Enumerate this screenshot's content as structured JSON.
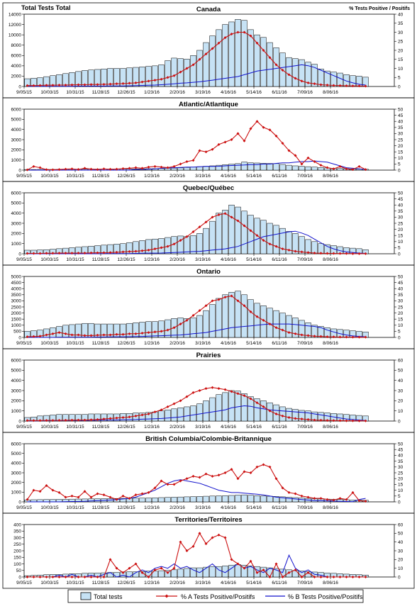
{
  "header": {
    "left_axis_title": "Total Tests Total",
    "right_axis_title": "% Tests Positive / Positifs"
  },
  "x_tick_labels": [
    "9/05/15",
    "10/03/15",
    "10/31/15",
    "11/28/15",
    "12/26/15",
    "1/23/16",
    "2/20/16",
    "3/19/16",
    "4/16/16",
    "5/14/16",
    "6/11/16",
    "7/09/16",
    "8/06/16"
  ],
  "legend": {
    "total_tests": "Total tests",
    "pct_a": "% A Tests Positive/Positifs",
    "pct_b": "% B Tests Positive/Positifs"
  },
  "colors": {
    "bar_fill": "#c6e2f5",
    "bar_stroke": "#000000",
    "line_a": "#cc1111",
    "line_b": "#1111cc",
    "frame": "#000000"
  },
  "chart_data": [
    {
      "type": "bar",
      "title": "Canada",
      "ylim_left": [
        0,
        14000
      ],
      "left_ticks": [
        0,
        2000,
        4000,
        6000,
        8000,
        10000,
        12000,
        14000
      ],
      "ylim_right": [
        0,
        40
      ],
      "right_ticks": [
        0,
        5,
        10,
        15,
        20,
        25,
        30,
        35,
        40
      ],
      "total_tests": [
        1500,
        1600,
        1700,
        1900,
        2100,
        2300,
        2500,
        2700,
        2900,
        3100,
        3200,
        3300,
        3400,
        3500,
        3500,
        3500,
        3600,
        3700,
        3800,
        3900,
        4000,
        4200,
        5000,
        5500,
        5400,
        5300,
        6000,
        7000,
        8500,
        9800,
        11000,
        12000,
        12500,
        13000,
        12800,
        11000,
        10000,
        9500,
        8500,
        7500,
        6500,
        5600,
        5400,
        5200,
        4700,
        4300,
        3400,
        3000,
        2800,
        2600,
        2300,
        2100,
        2000,
        1800
      ],
      "pct_a": [
        0.5,
        0.5,
        0.6,
        0.7,
        0.7,
        0.8,
        0.8,
        0.9,
        1,
        1,
        1.1,
        1.1,
        1.2,
        1.3,
        1.5,
        1.6,
        1.8,
        2,
        2.5,
        3,
        3.5,
        4,
        5,
        6,
        8,
        10,
        12,
        15,
        18,
        21,
        24,
        27,
        29,
        30,
        30,
        28,
        24,
        20,
        16,
        12,
        9,
        6.5,
        4.5,
        3,
        2,
        1.5,
        1,
        0.8,
        0.6,
        0.5,
        0.4,
        0.3,
        0.3,
        0.2
      ],
      "pct_b": [
        0.1,
        0.1,
        0.1,
        0.1,
        0.1,
        0.1,
        0.1,
        0.1,
        0.2,
        0.2,
        0.2,
        0.2,
        0.2,
        0.3,
        0.3,
        0.3,
        0.4,
        0.5,
        0.6,
        0.7,
        0.8,
        1,
        1.2,
        1.5,
        1.8,
        2,
        2.3,
        2.6,
        3,
        3.5,
        4,
        4.5,
        5,
        5.5,
        6.5,
        7.5,
        8.5,
        9,
        9.5,
        10,
        10.5,
        11,
        11.5,
        12,
        11.5,
        10.5,
        9,
        7.5,
        6,
        4.5,
        3,
        2,
        1.2,
        0.8
      ]
    },
    {
      "type": "bar",
      "title": "Atlantic/Atlantique",
      "ylim_left": [
        0,
        6000
      ],
      "left_ticks": [
        0,
        1000,
        2000,
        3000,
        4000,
        5000,
        6000
      ],
      "ylim_right": [
        0,
        50
      ],
      "right_ticks": [
        0,
        5,
        10,
        15,
        20,
        25,
        30,
        35,
        40,
        45,
        50
      ],
      "total_tests": [
        60,
        60,
        70,
        70,
        70,
        80,
        80,
        80,
        90,
        90,
        100,
        100,
        100,
        110,
        110,
        110,
        120,
        120,
        130,
        140,
        150,
        160,
        180,
        200,
        220,
        260,
        300,
        340,
        380,
        420,
        480,
        540,
        600,
        640,
        800,
        720,
        700,
        680,
        660,
        640,
        560,
        480,
        420,
        380,
        340,
        300,
        260,
        220,
        180,
        160,
        140,
        120,
        100,
        90
      ],
      "pct_a": [
        0.2,
        3,
        2,
        0.4,
        0.3,
        0.5,
        0.8,
        1,
        0.6,
        1.5,
        0.8,
        0.5,
        1,
        0.7,
        0.8,
        1.2,
        1.5,
        2,
        1.5,
        2.5,
        3,
        2.5,
        2,
        3,
        5,
        7,
        8,
        16,
        15,
        17,
        21,
        23,
        25,
        30,
        24,
        34,
        40,
        35,
        33,
        28,
        22,
        16,
        12,
        5,
        10,
        7,
        4,
        2,
        1,
        3,
        1,
        0.5,
        3,
        0.5
      ],
      "pct_b": [
        0,
        0,
        0,
        0,
        0,
        0,
        0,
        0,
        0,
        0,
        0,
        0,
        0,
        0,
        0,
        0,
        0,
        0.5,
        0.5,
        0.8,
        1,
        1.5,
        1.8,
        2,
        2.2,
        2.5,
        2.5,
        2.8,
        3,
        3,
        3.2,
        3.5,
        3.8,
        4,
        4.2,
        4.5,
        4.5,
        5,
        5,
        5.5,
        6,
        6,
        6.5,
        7,
        7,
        7.5,
        7,
        6.5,
        5,
        3.5,
        2,
        1.5,
        1,
        0.5
      ]
    },
    {
      "type": "bar",
      "title": "Quebec/Québec",
      "ylim_left": [
        0,
        6000
      ],
      "left_ticks": [
        0,
        1000,
        2000,
        3000,
        4000,
        5000,
        6000
      ],
      "ylim_right": [
        0,
        50
      ],
      "right_ticks": [
        0,
        5,
        10,
        15,
        20,
        25,
        30,
        35,
        40,
        45,
        50
      ],
      "total_tests": [
        350,
        350,
        380,
        400,
        450,
        500,
        550,
        600,
        650,
        700,
        750,
        800,
        850,
        900,
        950,
        1000,
        1100,
        1200,
        1300,
        1400,
        1450,
        1500,
        1600,
        1700,
        1750,
        1700,
        1800,
        2000,
        2500,
        3200,
        4000,
        4300,
        4800,
        4600,
        4200,
        3800,
        3500,
        3300,
        3000,
        2800,
        2500,
        2200,
        2000,
        1700,
        1400,
        1200,
        1000,
        900,
        800,
        700,
        600,
        550,
        500,
        400
      ],
      "pct_a": [
        0.3,
        0.3,
        0.3,
        0.4,
        0.4,
        0.5,
        0.5,
        0.5,
        0.6,
        0.6,
        0.7,
        0.8,
        0.9,
        1,
        1.2,
        1.5,
        1.8,
        2,
        2.5,
        3,
        4,
        5,
        6,
        8,
        11,
        14,
        18,
        22,
        26,
        30,
        32,
        33,
        30,
        27,
        23,
        19,
        15,
        11,
        8,
        6,
        4,
        3,
        2,
        1.5,
        1,
        0.6,
        0.4,
        0.3,
        0.3,
        0.2,
        0.2,
        0.1,
        0.1,
        0.1
      ],
      "pct_b": [
        0,
        0,
        0,
        0,
        0,
        0,
        0,
        0,
        0,
        0,
        0,
        0,
        0.1,
        0.1,
        0.1,
        0.1,
        0.2,
        0.3,
        0.4,
        0.5,
        0.5,
        0.6,
        0.8,
        1,
        1.2,
        1.5,
        1.8,
        2,
        2.5,
        3,
        3.5,
        4,
        5,
        6,
        8,
        10,
        12,
        14,
        15,
        16,
        17,
        18,
        18.5,
        17,
        15,
        12,
        9,
        6,
        4,
        2.5,
        1.5,
        1,
        0.5,
        0.3
      ]
    },
    {
      "type": "bar",
      "title": "Ontario",
      "ylim_left": [
        0,
        5000
      ],
      "left_ticks": [
        0,
        500,
        1000,
        1500,
        2000,
        2500,
        3000,
        3500,
        4000,
        4500,
        5000
      ],
      "ylim_right": [
        0,
        50
      ],
      "right_ticks": [
        0,
        5,
        10,
        15,
        20,
        25,
        30,
        35,
        40,
        45,
        50
      ],
      "total_tests": [
        500,
        550,
        600,
        700,
        800,
        900,
        1000,
        1050,
        1100,
        1150,
        1150,
        1100,
        1100,
        1100,
        1100,
        1100,
        1150,
        1200,
        1250,
        1300,
        1300,
        1350,
        1450,
        1550,
        1600,
        1550,
        1600,
        1800,
        2200,
        2700,
        3200,
        3500,
        3700,
        3800,
        3500,
        3100,
        2800,
        2600,
        2400,
        2200,
        2000,
        1800,
        1600,
        1400,
        1200,
        1000,
        900,
        800,
        700,
        650,
        600,
        550,
        500,
        450
      ],
      "pct_a": [
        0.5,
        0.7,
        1,
        2,
        3,
        4,
        3,
        2,
        2,
        1.5,
        1.5,
        1.8,
        2,
        2,
        2.5,
        2.5,
        3,
        3,
        3.5,
        4,
        4.5,
        5,
        6,
        8,
        11,
        14,
        18,
        22,
        26,
        30,
        31,
        33,
        34,
        30,
        26,
        21,
        17,
        14,
        11,
        8,
        6,
        4,
        3,
        2,
        1.5,
        1,
        0.8,
        0.5,
        0.4,
        0.3,
        0.3,
        0.2,
        0.2,
        0.2
      ],
      "pct_b": [
        0,
        0,
        0,
        0,
        0,
        0.1,
        0.1,
        0.1,
        0.1,
        0.2,
        0.2,
        0.3,
        0.3,
        0.4,
        0.5,
        0.5,
        0.6,
        0.7,
        0.8,
        1,
        1.2,
        1.4,
        1.6,
        1.8,
        2,
        2.5,
        3,
        3.5,
        4,
        5,
        6,
        7,
        8,
        8.5,
        9,
        9.5,
        10,
        10.5,
        11,
        11,
        11,
        11,
        10.5,
        10,
        9.5,
        9,
        8,
        6,
        4.5,
        3,
        2,
        1.2,
        0.8,
        0.5
      ]
    },
    {
      "type": "bar",
      "title": "Prairies",
      "ylim_left": [
        0,
        6000
      ],
      "left_ticks": [
        0,
        1000,
        2000,
        3000,
        4000,
        5000,
        6000
      ],
      "ylim_right": [
        0,
        60
      ],
      "right_ticks": [
        0,
        10,
        20,
        30,
        40,
        50,
        60
      ],
      "total_tests": [
        350,
        400,
        500,
        550,
        600,
        650,
        650,
        650,
        650,
        650,
        700,
        700,
        700,
        700,
        700,
        750,
        750,
        800,
        800,
        850,
        900,
        1000,
        1100,
        1200,
        1300,
        1400,
        1500,
        1700,
        2000,
        2300,
        2600,
        2800,
        3000,
        2950,
        2700,
        2400,
        2200,
        2000,
        1800,
        1600,
        1400,
        1250,
        1150,
        1050,
        1000,
        900,
        850,
        800,
        750,
        700,
        650,
        600,
        550,
        500
      ],
      "pct_a": [
        0.5,
        0.5,
        0.5,
        0.6,
        0.6,
        0.7,
        0.8,
        0.9,
        1,
        1,
        1.2,
        1.5,
        2,
        2.5,
        3,
        3.5,
        4,
        5,
        6,
        7,
        9,
        11,
        14,
        17,
        20,
        24,
        28,
        30,
        32,
        33,
        32,
        31,
        29,
        27,
        25,
        22,
        18,
        14,
        10,
        7,
        5,
        3.5,
        2.5,
        2,
        1.5,
        1,
        0.8,
        0.6,
        0.5,
        0.4,
        0.3,
        0.3,
        0.2,
        0.2
      ],
      "pct_b": [
        0.2,
        0.2,
        0.3,
        0.3,
        0.4,
        0.4,
        0.5,
        0.5,
        0.6,
        0.6,
        0.7,
        0.8,
        0.9,
        1,
        1,
        1.2,
        1.3,
        1.5,
        1.8,
        2,
        2.2,
        2.5,
        3,
        3.5,
        4,
        5,
        6,
        7,
        8,
        9,
        10,
        11,
        13,
        14,
        15,
        14.5,
        13,
        12,
        11,
        10.5,
        10,
        9.5,
        9,
        8.5,
        8,
        7,
        6,
        5,
        4,
        3,
        2,
        1.5,
        1,
        0.5
      ]
    },
    {
      "type": "bar",
      "title": "British Columbia/Colombie-Britannique",
      "ylim_left": [
        0,
        6000
      ],
      "left_ticks": [
        0,
        1000,
        2000,
        3000,
        4000,
        5000,
        6000
      ],
      "ylim_right": [
        0,
        50
      ],
      "right_ticks": [
        0,
        5,
        10,
        15,
        20,
        25,
        30,
        35,
        40,
        45,
        50
      ],
      "total_tests": [
        200,
        220,
        230,
        240,
        250,
        260,
        270,
        280,
        290,
        300,
        310,
        320,
        330,
        340,
        350,
        360,
        370,
        380,
        390,
        400,
        420,
        440,
        460,
        480,
        500,
        520,
        540,
        560,
        580,
        600,
        620,
        640,
        660,
        700,
        720,
        680,
        640,
        600,
        580,
        560,
        520,
        480,
        440,
        400,
        360,
        320,
        300,
        280,
        260,
        240,
        220,
        200,
        180,
        160
      ],
      "pct_a": [
        2,
        10,
        9,
        14,
        10,
        8,
        4,
        5,
        4,
        9,
        4,
        7,
        6,
        4,
        2,
        5,
        3,
        6,
        7,
        8,
        12,
        18,
        15,
        15,
        18,
        20,
        22,
        21,
        24,
        22,
        23,
        25,
        28,
        20,
        26,
        25,
        30,
        32,
        30,
        20,
        12,
        8,
        7,
        5,
        4,
        3,
        3,
        2,
        1.5,
        3,
        2,
        8,
        1,
        0.5
      ],
      "pct_b": [
        0,
        0,
        0,
        0,
        0,
        0,
        0.2,
        0.3,
        0.3,
        0.5,
        0.8,
        1,
        1.2,
        1.5,
        2,
        2.5,
        3,
        4,
        6,
        8,
        10,
        13,
        16,
        18,
        19,
        18,
        17,
        16,
        14,
        12,
        10,
        9,
        8,
        8,
        7.5,
        7,
        6.5,
        6,
        5,
        4,
        3.5,
        3,
        2.5,
        2,
        1.5,
        1,
        1,
        0.8,
        0.6,
        0.5,
        0.3,
        0.2,
        2,
        3
      ]
    },
    {
      "type": "bar",
      "title": "Territories/Territoires",
      "ylim_left": [
        0,
        400
      ],
      "left_ticks": [
        0,
        50,
        100,
        150,
        200,
        250,
        300,
        350,
        400
      ],
      "ylim_right": [
        0,
        60
      ],
      "right_ticks": [
        0,
        10,
        20,
        30,
        40,
        50,
        60
      ],
      "total_tests": [
        10,
        12,
        15,
        18,
        20,
        20,
        22,
        25,
        25,
        28,
        30,
        30,
        32,
        35,
        35,
        38,
        40,
        40,
        42,
        45,
        45,
        48,
        50,
        55,
        60,
        65,
        70,
        70,
        75,
        80,
        80,
        85,
        90,
        95,
        90,
        85,
        80,
        75,
        70,
        65,
        60,
        55,
        50,
        45,
        40,
        38,
        35,
        30,
        28,
        25,
        22,
        20,
        18,
        15
      ],
      "pct_a": [
        0,
        0,
        0,
        0,
        0,
        0,
        0,
        0,
        0,
        0,
        0,
        0,
        0,
        20,
        10,
        5,
        10,
        15,
        5,
        0,
        8,
        10,
        5,
        10,
        40,
        30,
        35,
        50,
        38,
        45,
        48,
        45,
        20,
        15,
        10,
        18,
        5,
        8,
        0,
        15,
        0,
        5,
        8,
        0,
        5,
        0,
        0,
        0,
        0,
        0,
        0,
        0,
        0,
        0
      ],
      "pct_b": [
        0,
        0,
        0,
        0,
        0,
        2,
        0,
        3,
        0,
        0,
        2,
        0,
        3,
        5,
        0,
        2,
        0,
        5,
        8,
        5,
        10,
        12,
        10,
        15,
        10,
        12,
        8,
        5,
        10,
        15,
        8,
        5,
        10,
        15,
        10,
        12,
        8,
        5,
        10,
        8,
        5,
        25,
        10,
        5,
        8,
        3,
        2,
        0,
        0,
        0,
        0,
        0,
        0,
        0
      ]
    }
  ]
}
